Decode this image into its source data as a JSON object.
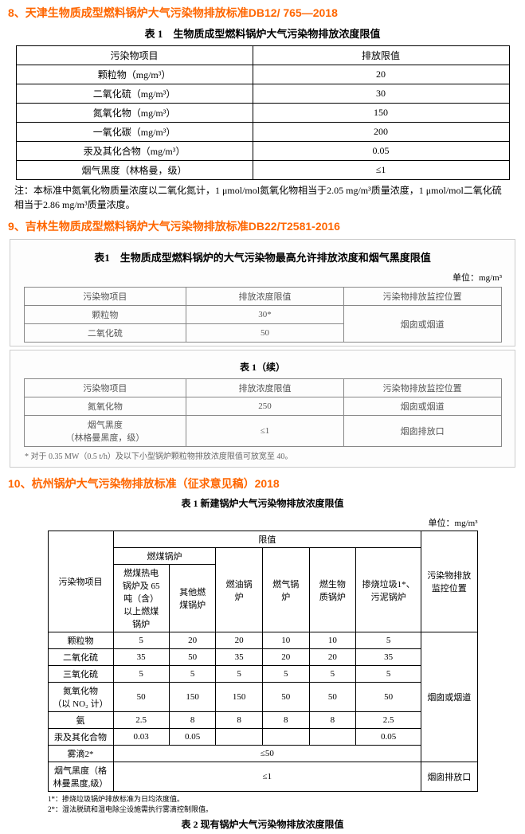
{
  "s8": {
    "title": "8、天津生物质成型燃料锅炉大气污染物排放标准DB12/ 765—2018",
    "tableTitle": "表 1　生物质成型燃料锅炉大气污染物排放浓度限值",
    "headers": [
      "污染物项目",
      "排放限值"
    ],
    "rows": [
      [
        "颗粒物（mg/m³）",
        "20"
      ],
      [
        "二氧化硫（mg/m³）",
        "30"
      ],
      [
        "氮氧化物（mg/m³）",
        "150"
      ],
      [
        "一氧化碳（mg/m³）",
        "200"
      ],
      [
        "汞及其化合物（mg/m³）",
        "0.05"
      ],
      [
        "烟气黑度（林格曼，级）",
        "≤1"
      ]
    ],
    "note": "注：本标准中氮氧化物质量浓度以二氧化氮计，1 μmol/mol氮氧化物相当于2.05 mg/m³质量浓度，1 μmol/mol二氧化硫相当于2.86 mg/m³质量浓度。"
  },
  "s9": {
    "title": "9、吉林生物质成型燃料锅炉大气污染物排放标准DB22/T2581-2016",
    "tableTitle": "表1　生物质成型燃料锅炉的大气污染物最高允许排放浓度和烟气黑度限值",
    "unit": "单位：mg/m³",
    "headers1": [
      "污染物项目",
      "排放浓度限值",
      "污染物排放监控位置"
    ],
    "rows1": [
      [
        "颗粒物",
        "30*",
        "烟囱或烟道"
      ],
      [
        "二氧化硫",
        "50",
        ""
      ]
    ],
    "contTitle": "表 1（续）",
    "rows2": [
      [
        "氮氧化物",
        "250",
        "烟囱或烟道"
      ],
      [
        "烟气黑度\n（林格曼黑度，级）",
        "≤1",
        "烟囱排放口"
      ]
    ],
    "foot": "* 对于 0.35 MW（0.5 t/h）及以下小型锅炉颗粒物排放浓度限值可放宽至 40。"
  },
  "s10": {
    "title": "10、杭州锅炉大气污染物排放标准（征求意见稿）2018",
    "tableTitle": "表 1 新建锅炉大气污染物排放浓度限值",
    "unit": "单位：mg/m³",
    "colGroupTop": "限值",
    "colGroupCoal": "燃煤锅炉",
    "colPollutant": "污染物项目",
    "colMonitor": "污染物排放监控位置",
    "colHeaders": [
      "燃煤热电\n锅炉及 65\n吨（含）\n以上燃煤\n锅炉",
      "其他燃\n煤锅炉",
      "燃油锅\n炉",
      "燃气锅\n炉",
      "燃生物\n质锅炉",
      "掺烧垃圾1*、\n污泥锅炉"
    ],
    "rows": [
      {
        "p": "颗粒物",
        "v": [
          "5",
          "20",
          "20",
          "10",
          "10",
          "5"
        ],
        "loc": ""
      },
      {
        "p": "二氧化硫",
        "v": [
          "35",
          "50",
          "35",
          "20",
          "20",
          "35"
        ],
        "loc": ""
      },
      {
        "p": "三氧化硫",
        "v": [
          "5",
          "5",
          "5",
          "5",
          "5",
          "5"
        ],
        "loc": ""
      },
      {
        "p": "氮氧化物\n（以 NO₂ 计）",
        "v": [
          "50",
          "150",
          "150",
          "50",
          "50",
          "50"
        ],
        "loc": "烟囱或烟道"
      },
      {
        "p": "氨",
        "v": [
          "2.5",
          "8",
          "8",
          "8",
          "8",
          "2.5"
        ],
        "loc": ""
      },
      {
        "p": "汞及其化合物",
        "v": [
          "0.03",
          "0.05",
          "",
          "",
          "",
          "0.05"
        ],
        "loc": ""
      },
      {
        "p": "雾滴2*",
        "v": [
          "≤50"
        ],
        "span": 6,
        "loc": ""
      },
      {
        "p": "烟气黑度（格\n林曼黑度,级）",
        "v": [
          "≤1"
        ],
        "span": 6,
        "loc": "烟囱排放口"
      }
    ],
    "foot1": "1*：掺烧垃圾锅炉排放标准为日均浓度值。",
    "foot2": "2*：湿法脱硫和湿电除尘设施需执行雾滴控制限值。",
    "caption2": "表 2 现有锅炉大气污染物排放浓度限值"
  }
}
